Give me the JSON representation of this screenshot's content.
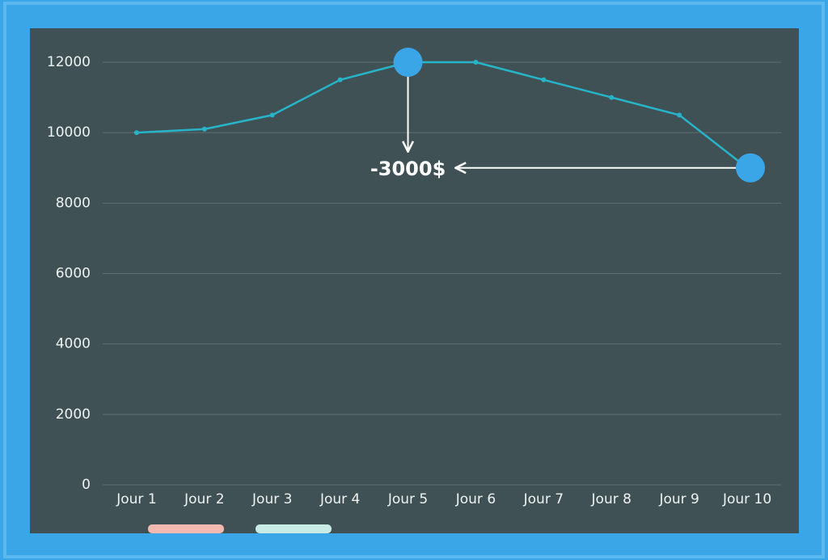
{
  "chart_data": {
    "type": "line",
    "categories": [
      "Jour 1",
      "Jour 2",
      "Jour 3",
      "Jour 4",
      "Jour 5",
      "Jour 6",
      "Jour 7",
      "Jour 8",
      "Jour 9",
      "Jour 10"
    ],
    "values": [
      10000,
      10100,
      10500,
      11500,
      12000,
      12000,
      11500,
      11000,
      10500,
      9000
    ],
    "color": "#27b4c9",
    "ylim": [
      0,
      12000
    ],
    "yticks": [
      0,
      2000,
      4000,
      6000,
      8000,
      10000,
      12000
    ],
    "grid": true,
    "annotation": "-3000$"
  }
}
